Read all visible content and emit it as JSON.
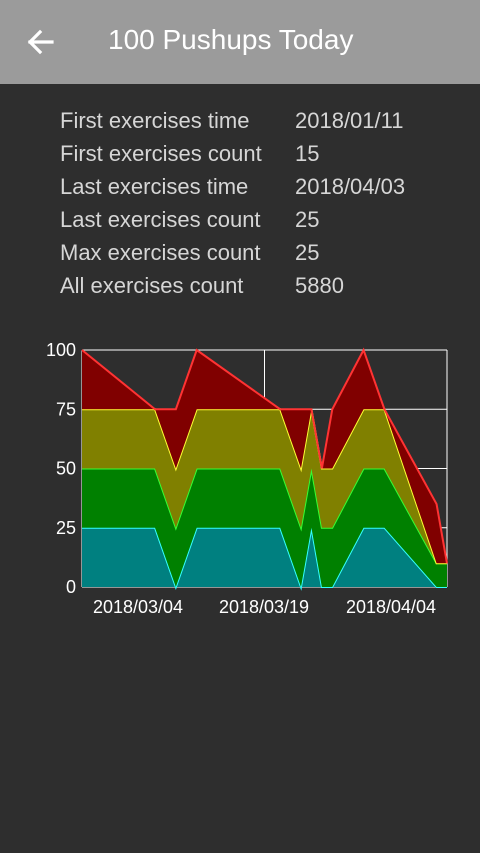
{
  "app_bar": {
    "title": "100 Pushups Today",
    "back_icon": "arrow-back-icon",
    "background": "#9b9b9b"
  },
  "stats": [
    {
      "label": "First exercises time",
      "value": "2018/01/11"
    },
    {
      "label": "First exercises count",
      "value": "15"
    },
    {
      "label": "Last exercises time",
      "value": "2018/04/03"
    },
    {
      "label": "Last exercises count",
      "value": "25"
    },
    {
      "label": "Max exercises count",
      "value": "25"
    },
    {
      "label": "All exercises count",
      "value": "5880"
    }
  ],
  "chart_data": {
    "type": "area",
    "stacked": true,
    "y_ticks": [
      "0",
      "25",
      "50",
      "75",
      "100"
    ],
    "ylim": [
      0,
      100
    ],
    "x_ticks": [
      "2018/03/04",
      "2018/03/19",
      "2018/04/04"
    ],
    "grid": true,
    "xlim": [
      0,
      35
    ],
    "x": [
      0,
      7,
      9,
      11,
      19,
      21,
      22,
      23,
      24,
      27,
      29,
      34,
      35
    ],
    "series": [
      {
        "values": [
          25,
          25,
          0,
          25,
          25,
          0,
          25,
          0,
          0,
          25,
          25,
          0,
          0
        ],
        "color": "#008080",
        "line": "#33ffff"
      },
      {
        "values": [
          25,
          25,
          25,
          25,
          25,
          25,
          25,
          25,
          25,
          25,
          25,
          10,
          10
        ],
        "color": "#008000",
        "line": "#33ff33"
      },
      {
        "values": [
          25,
          25,
          25,
          25,
          25,
          25,
          25,
          25,
          25,
          25,
          25,
          0,
          0
        ],
        "color": "#808000",
        "line": "#ffff33"
      },
      {
        "values": [
          25,
          0,
          25,
          25,
          0,
          25,
          0,
          0,
          25,
          25,
          0,
          25,
          0
        ],
        "color": "#800000",
        "line": "#ff3333"
      }
    ]
  }
}
